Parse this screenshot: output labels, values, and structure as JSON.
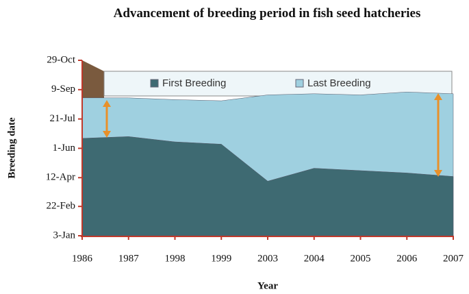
{
  "chart_data": {
    "type": "area",
    "title": "Advancement of breeding period in fish seed hatcheries",
    "x_label": "Year",
    "y_label": "Breeding date",
    "categories": [
      "1986",
      "1987",
      "1998",
      "1999",
      "2003",
      "2004",
      "2005",
      "2006",
      "2007"
    ],
    "series": [
      {
        "name": "Last Breeding",
        "color": "#9fd0e0",
        "values": [
          238,
          238,
          235,
          233,
          243,
          245,
          243,
          248,
          245
        ]
      },
      {
        "name": "First Breeding",
        "color": "#3e6a72",
        "values": [
          169,
          172,
          163,
          159,
          96,
          118,
          114,
          110,
          104
        ]
      }
    ],
    "ylim": [
      3,
      302
    ],
    "yticks": [
      {
        "value": 3,
        "label": "3-Jan"
      },
      {
        "value": 53,
        "label": "22-Feb"
      },
      {
        "value": 102,
        "label": "12-Apr"
      },
      {
        "value": 152,
        "label": "1-Jun"
      },
      {
        "value": 202,
        "label": "21-Jul"
      },
      {
        "value": 252,
        "label": "9-Sep"
      },
      {
        "value": 302,
        "label": "29-Oct"
      }
    ],
    "legend": "top"
  }
}
